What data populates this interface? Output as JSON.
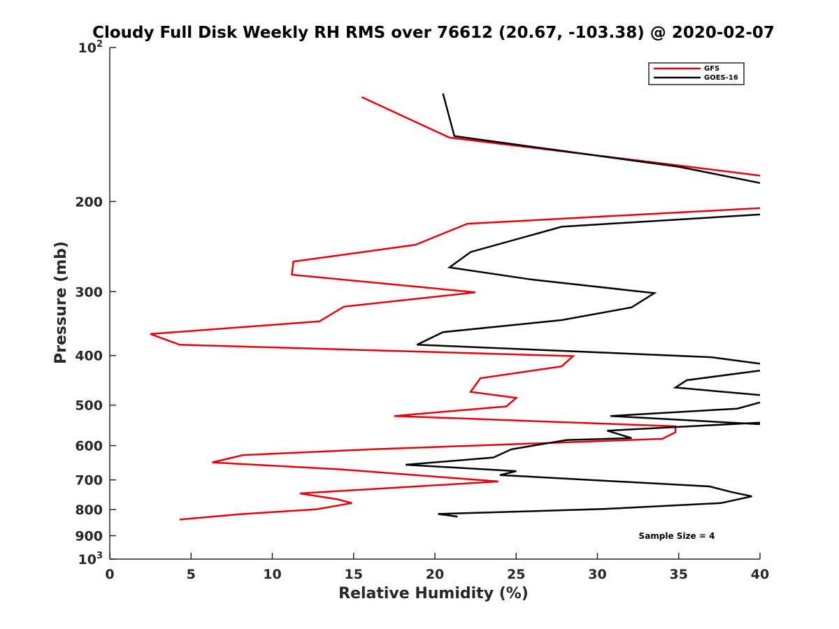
{
  "chart_data": {
    "type": "line",
    "title": "Cloudy Full Disk Weekly RH RMS over 76612 (20.67, -103.38) @ 2020-02-07",
    "xlabel": "Relative Humidity (%)",
    "ylabel": "Pressure (mb)",
    "xlim": [
      0,
      40
    ],
    "ylim": [
      100,
      1000
    ],
    "yscale": "log",
    "yreversed": true,
    "x_ticks": [
      "0",
      "5",
      "10",
      "15",
      "20",
      "25",
      "30",
      "35",
      "40"
    ],
    "y_ticks": [
      {
        "value": 100,
        "label": "10",
        "sup": "2"
      },
      {
        "value": 200,
        "label": "200"
      },
      {
        "value": 300,
        "label": "300"
      },
      {
        "value": 400,
        "label": "400"
      },
      {
        "value": 500,
        "label": "500"
      },
      {
        "value": 600,
        "label": "600"
      },
      {
        "value": 700,
        "label": "700"
      },
      {
        "value": 800,
        "label": "800"
      },
      {
        "value": 900,
        "label": "900"
      },
      {
        "value": 1000,
        "label": "10",
        "sup": "3"
      }
    ],
    "legend_position": "top-right",
    "annotation": "Sample Size = 4",
    "series": [
      {
        "name": "GFS",
        "color": "#e8000b",
        "points": [
          [
            15.5,
            125
          ],
          [
            20.9,
            150
          ],
          [
            35,
            170
          ],
          [
            40,
            178
          ],
          [
            null,
            null
          ],
          [
            40,
            206
          ],
          [
            22,
            221
          ],
          [
            18.8,
            243
          ],
          [
            11.3,
            262
          ],
          [
            11.2,
            278
          ],
          [
            22.5,
            301
          ],
          [
            14.4,
            321
          ],
          [
            12.9,
            343
          ],
          [
            2.5,
            363
          ],
          [
            4.3,
            381
          ],
          [
            28.5,
            401
          ],
          [
            27.8,
            420
          ],
          [
            22.8,
            443
          ],
          [
            22.2,
            471
          ],
          [
            25,
            484
          ],
          [
            24.4,
            503
          ],
          [
            17.5,
            525
          ],
          [
            34.8,
            550
          ],
          [
            34.8,
            565
          ],
          [
            34,
            582
          ],
          [
            16.1,
            610
          ],
          [
            8.2,
            626
          ],
          [
            6.3,
            647
          ],
          [
            14.3,
            668
          ],
          [
            23.9,
            705
          ],
          [
            11.7,
            744
          ],
          [
            14,
            764
          ],
          [
            14.9,
            777
          ],
          [
            12.7,
            799
          ],
          [
            8,
            817
          ],
          [
            4.3,
            837
          ]
        ]
      },
      {
        "name": "GOES-16",
        "color": "#000000",
        "points": [
          [
            20.5,
            123
          ],
          [
            21.2,
            149
          ],
          [
            35,
            171
          ],
          [
            40,
            184
          ],
          [
            null,
            null
          ],
          [
            40,
            212
          ],
          [
            27.8,
            224
          ],
          [
            22.2,
            251
          ],
          [
            20.9,
            269
          ],
          [
            25.9,
            284
          ],
          [
            33.5,
            302
          ],
          [
            32.1,
            322
          ],
          [
            27.8,
            341
          ],
          [
            20.5,
            360
          ],
          [
            18.9,
            381
          ],
          [
            37,
            403
          ],
          [
            40,
            415
          ],
          [
            null,
            null
          ],
          [
            40,
            428
          ],
          [
            35.5,
            447
          ],
          [
            34.8,
            462
          ],
          [
            40,
            478
          ],
          [
            null,
            null
          ],
          [
            40,
            494
          ],
          [
            38.6,
            508
          ],
          [
            30.8,
            525
          ],
          [
            40,
            545
          ],
          [
            null,
            null
          ],
          [
            40,
            541
          ],
          [
            30.6,
            561
          ],
          [
            32.1,
            580
          ],
          [
            28.1,
            585
          ],
          [
            24.7,
            610
          ],
          [
            23.6,
            633
          ],
          [
            18.2,
            654
          ],
          [
            25,
            673
          ],
          [
            24,
            685
          ],
          [
            36.9,
            721
          ],
          [
            38.3,
            740
          ],
          [
            39.5,
            754
          ],
          [
            37.6,
            777
          ],
          [
            30.4,
            798
          ],
          [
            20.2,
            816
          ],
          [
            21.4,
            826
          ]
        ]
      }
    ]
  }
}
